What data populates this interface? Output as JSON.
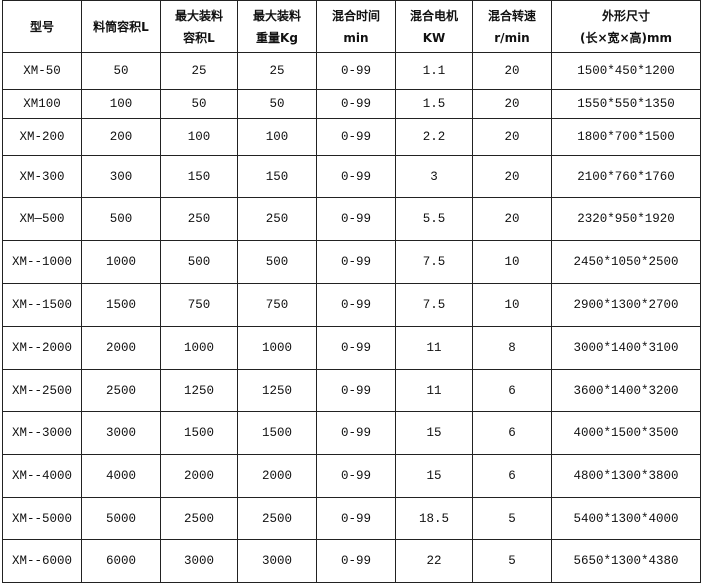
{
  "table": {
    "headers": [
      [
        "型号"
      ],
      [
        "料筒容积L"
      ],
      [
        "最大装料",
        "容积L"
      ],
      [
        "最大装料",
        "重量Kg"
      ],
      [
        "混合时间",
        "min"
      ],
      [
        "混合电机",
        "KW"
      ],
      [
        "混合转速",
        "r/min"
      ],
      [
        "外形尺寸",
        "(长×宽×高)mm"
      ]
    ],
    "rows": [
      [
        "XM-50",
        "50",
        "25",
        "25",
        "0-99",
        "1.1",
        "20",
        "1500*450*1200"
      ],
      [
        "XM100",
        "100",
        "50",
        "50",
        "0-99",
        "1.5",
        "20",
        "1550*550*1350"
      ],
      [
        "XM-200",
        "200",
        "100",
        "100",
        "0-99",
        "2.2",
        "20",
        "1800*700*1500"
      ],
      [
        "XM-300",
        "300",
        "150",
        "150",
        "0-99",
        "3",
        "20",
        "2100*760*1760"
      ],
      [
        "XM—500",
        "500",
        "250",
        "250",
        "0-99",
        "5.5",
        "20",
        "2320*950*1920"
      ],
      [
        "XM--1000",
        "1000",
        "500",
        "500",
        "0-99",
        "7.5",
        "10",
        "2450*1050*2500"
      ],
      [
        "XM--1500",
        "1500",
        "750",
        "750",
        "0-99",
        "7.5",
        "10",
        "2900*1300*2700"
      ],
      [
        "XM--2000",
        "2000",
        "1000",
        "1000",
        "0-99",
        "11",
        "8",
        "3000*1400*3100"
      ],
      [
        "XM--2500",
        "2500",
        "1250",
        "1250",
        "0-99",
        "11",
        "6",
        "3600*1400*3200"
      ],
      [
        "XM--3000",
        "3000",
        "1500",
        "1500",
        "0-99",
        "15",
        "6",
        "4000*1500*3500"
      ],
      [
        "XM--4000",
        "4000",
        "2000",
        "2000",
        "0-99",
        "15",
        "6",
        "4800*1300*3800"
      ],
      [
        "XM--5000",
        "5000",
        "2500",
        "2500",
        "0-99",
        "18.5",
        "5",
        "5400*1300*4000"
      ],
      [
        "XM--6000",
        "6000",
        "3000",
        "3000",
        "0-99",
        "22",
        "5",
        "5650*1300*4380"
      ]
    ]
  }
}
